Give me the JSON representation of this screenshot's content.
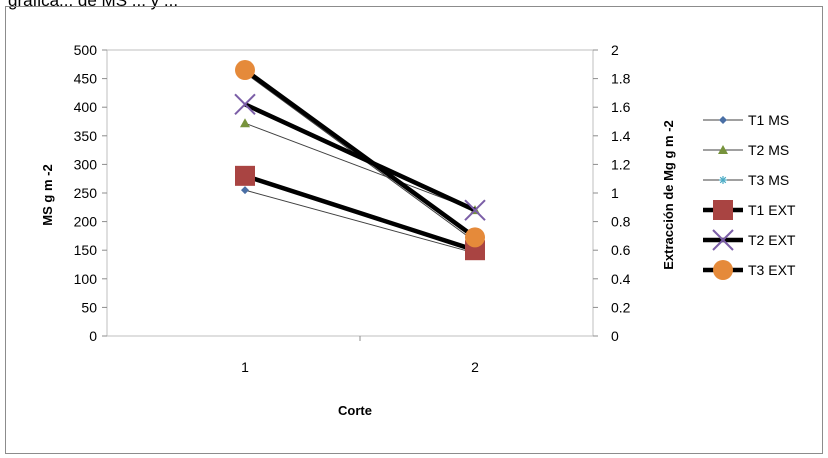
{
  "page": {
    "top_clipped_text": "gráfica... de MS ... y ..."
  },
  "chart_data": {
    "type": "line",
    "x": [
      1,
      2
    ],
    "x_tick_labels": [
      "1",
      "2"
    ],
    "xlabel": "Corte",
    "ylabel_left": "MS g m -2",
    "ylabel_right": "Extracción de Mg g m -2",
    "ylim_left": [
      0,
      500
    ],
    "ylim_right": [
      0,
      2
    ],
    "yticks_left": [
      "0",
      "50",
      "100",
      "150",
      "200",
      "250",
      "300",
      "350",
      "400",
      "450",
      "500"
    ],
    "yticks_right": [
      "0",
      "0.2",
      "0.4",
      "0.6",
      "0.8",
      "1",
      "1.2",
      "1.4",
      "1.6",
      "1.8",
      "2"
    ],
    "grid": false,
    "legend_position": "right",
    "series": [
      {
        "name": "T1 MS",
        "axis": "left",
        "values": [
          255,
          145
        ],
        "color": "#4a6fa5",
        "marker": "diamond",
        "thick": false
      },
      {
        "name": "T2 MS",
        "axis": "left",
        "values": [
          372,
          220
        ],
        "color": "#77933c",
        "marker": "triangle",
        "thick": false
      },
      {
        "name": "T3 MS",
        "axis": "left",
        "values": [
          460,
          165
        ],
        "color": "#4bacc6",
        "marker": "asterisk",
        "thick": false
      },
      {
        "name": "T1 EXT",
        "axis": "right",
        "values": [
          1.12,
          0.6
        ],
        "color": "#a94442",
        "marker": "square",
        "thick": true
      },
      {
        "name": "T2 EXT",
        "axis": "right",
        "values": [
          1.62,
          0.88
        ],
        "color": "#7b5ea7",
        "marker": "x",
        "thick": true
      },
      {
        "name": "T3 EXT",
        "axis": "right",
        "values": [
          1.86,
          0.69
        ],
        "color": "#e58a3a",
        "marker": "circle",
        "thick": true
      }
    ]
  }
}
